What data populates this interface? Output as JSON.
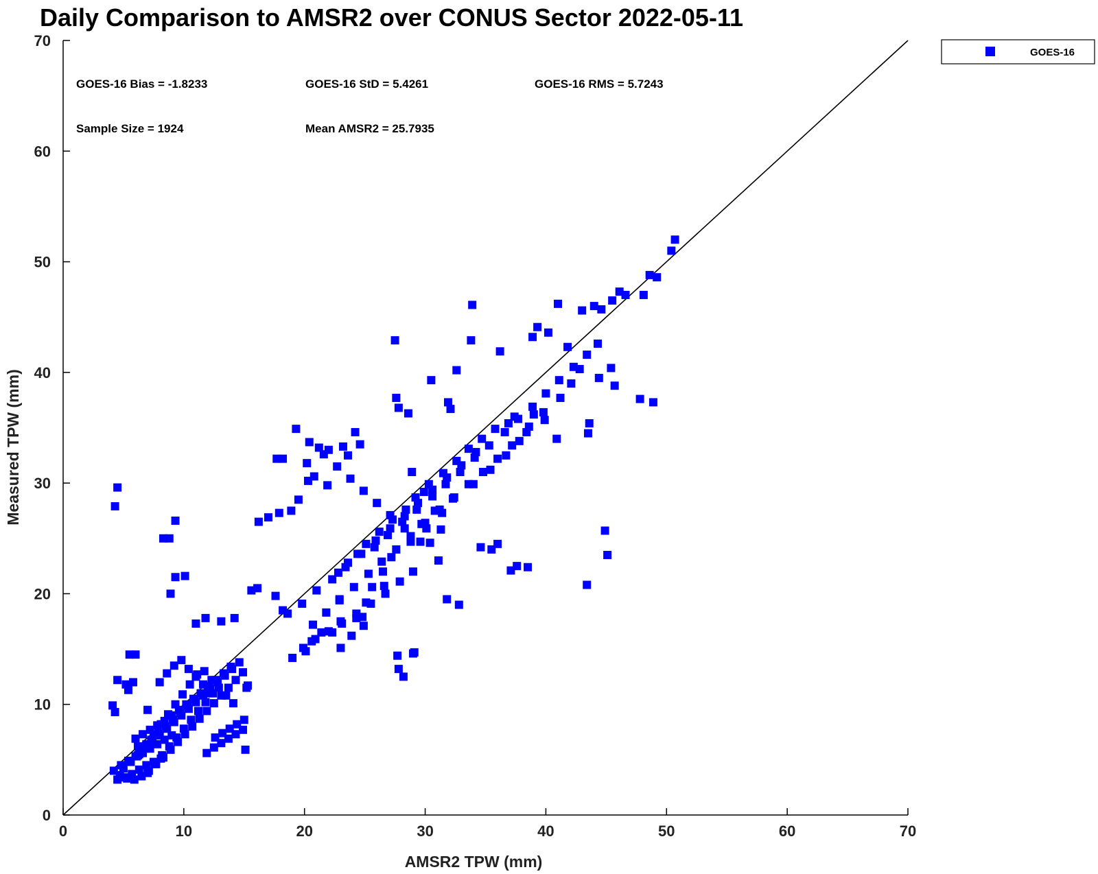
{
  "chart_data": {
    "type": "scatter",
    "title": "Daily Comparison to AMSR2 over CONUS Sector 2022-05-11",
    "xlabel": "AMSR2 TPW (mm)",
    "ylabel": "Measured TPW (mm)",
    "xlim": [
      0,
      70
    ],
    "ylim": [
      0,
      70
    ],
    "xticks": [
      "0",
      "10",
      "20",
      "30",
      "40",
      "50",
      "60",
      "70"
    ],
    "yticks": [
      "0",
      "10",
      "20",
      "30",
      "40",
      "50",
      "60",
      "70"
    ],
    "grid": false,
    "legend_position": "top-right, outside plot",
    "one_to_one_line": true,
    "stats": {
      "bias": "GOES-16 Bias = -1.8233",
      "std": "GOES-16 StD = 5.4261",
      "rms": "GOES-16 RMS = 5.7243",
      "sample_size": "Sample Size = 1924",
      "mean": "Mean AMSR2 = 25.7935"
    },
    "series": [
      {
        "name": "GOES-16",
        "color": "#0000ff",
        "marker": "square",
        "x": [
          4.5,
          4.3,
          9.3,
          8.3,
          8.8,
          9.3,
          10.1,
          8.9,
          5.5,
          6.0,
          4.5,
          5.8,
          5.2,
          5.4,
          4.1,
          4.3,
          6.2,
          7.0,
          11.0,
          11.8,
          13.1,
          14.2,
          15.2,
          15.3,
          15.1,
          16.2,
          17.0,
          17.9,
          15.6,
          16.1,
          17.7,
          18.2,
          18.9,
          19.5,
          20.2,
          21.2,
          22.0,
          20.8,
          21.9,
          20.3,
          23.2,
          23.6,
          24.2,
          24.6,
          27.6,
          27.8,
          28.6,
          17.6,
          18.2,
          19.0,
          20.1,
          20.6,
          21.4,
          22.3,
          23.0,
          23.9,
          24.8,
          25.1,
          25.6,
          26.6,
          27.7,
          29.0,
          27.5,
          30.5,
          31.9,
          32.1,
          32.6,
          33.9,
          33.8,
          36.2,
          38.9,
          39.3,
          40.2,
          41.0,
          41.8,
          43.0,
          44.0,
          44.6,
          45.5,
          46.1,
          46.6,
          48.1,
          48.6,
          49.2,
          50.4,
          50.7,
          47.8,
          48.9,
          45.7,
          45.4,
          44.4,
          43.6,
          43.5,
          40.9,
          39.9,
          39.0,
          44.9,
          45.1,
          43.4,
          38.5,
          37.6,
          37.1,
          36.0,
          35.5,
          34.6,
          32.8,
          31.8,
          29.1,
          28.2,
          27.8,
          24.9,
          24.3,
          23.0,
          22.9,
          26.5,
          27.2,
          28.8,
          30.1,
          31.4,
          32.3,
          34.0,
          35.4,
          36.7,
          37.8,
          38.6,
          39.8,
          41.2,
          42.1,
          42.8,
          37.4,
          36.9,
          35.8,
          34.7,
          33.6,
          32.6,
          31.5,
          30.3,
          29.2,
          28.4,
          27.3,
          26.2,
          25.1,
          24.4,
          23.6,
          22.8,
          25.8,
          26.9,
          28.1,
          29.3,
          30.6,
          31.7,
          32.9,
          34.1,
          35.3,
          36.6,
          37.7,
          38.9,
          40.0,
          41.1,
          42.3,
          43.4,
          44.3,
          28.9,
          29.9,
          30.8,
          31.3,
          29.6,
          28.3,
          27.1,
          26.0,
          24.9,
          23.8,
          22.7,
          21.6,
          20.4,
          19.3,
          18.6,
          19.8,
          21.0,
          22.3,
          23.4,
          24.7,
          25.9,
          27.1,
          28.3,
          29.4,
          30.6,
          31.8,
          33.0,
          34.2,
          29.7,
          30.4,
          31.1,
          29.0,
          27.9,
          26.7,
          25.5,
          24.3,
          23.1,
          22.0,
          20.9,
          19.9,
          20.7,
          21.8,
          22.9,
          24.1,
          25.3,
          26.4,
          27.6,
          28.8,
          30.0,
          31.2,
          32.4,
          33.6,
          34.8,
          36.0,
          37.2,
          38.4,
          5.0,
          5.6,
          6.2,
          6.8,
          7.4,
          8.0,
          8.6,
          9.2,
          9.8,
          10.4,
          11.0,
          11.6,
          12.2,
          12.8,
          13.4,
          14.0,
          14.6,
          6.3,
          6.9,
          7.5,
          8.1,
          8.7,
          9.3,
          9.9,
          10.5,
          11.1,
          11.7,
          12.3,
          12.9,
          13.5,
          14.1,
          7.0,
          7.6,
          8.2,
          8.8,
          9.4,
          10.0,
          10.6,
          11.2,
          11.8,
          12.4,
          8.0,
          8.6,
          9.2,
          9.8,
          10.4,
          11.0,
          11.6,
          12.2,
          4.7,
          5.3,
          5.9,
          6.5,
          7.1,
          7.7,
          8.3,
          8.9,
          9.5,
          10.1,
          10.7,
          11.3,
          11.9,
          12.5,
          13.1,
          13.7,
          14.3,
          14.9,
          5.5,
          6.1,
          6.7,
          7.3,
          7.9,
          8.5,
          9.1,
          9.7,
          10.3,
          10.9,
          11.5,
          12.1,
          12.7,
          13.3,
          13.9,
          6.0,
          6.6,
          7.2,
          7.8,
          8.4,
          9.0,
          9.6,
          10.2,
          10.8,
          11.4,
          12.0,
          4.2,
          4.8,
          5.4,
          6.0,
          6.6,
          7.2,
          7.8,
          8.4,
          9.0,
          4.5,
          5.1,
          5.7,
          6.3,
          6.9,
          7.5,
          8.1,
          12.6,
          13.2,
          13.8,
          14.4,
          15.0,
          11.9,
          12.5,
          13.1,
          13.7,
          14.3,
          14.9
        ],
        "y": [
          29.6,
          27.9,
          26.6,
          25.0,
          25.0,
          21.5,
          21.6,
          20.0,
          14.5,
          14.5,
          12.2,
          12.0,
          11.8,
          11.3,
          9.9,
          9.3,
          6.2,
          9.5,
          17.3,
          17.8,
          17.5,
          17.8,
          11.5,
          11.7,
          5.9,
          26.5,
          26.9,
          27.3,
          20.3,
          20.5,
          32.2,
          32.2,
          27.5,
          28.5,
          31.8,
          33.2,
          33.0,
          30.6,
          29.8,
          30.2,
          33.3,
          32.5,
          34.6,
          33.5,
          37.7,
          36.8,
          36.3,
          19.8,
          18.5,
          14.2,
          14.8,
          15.7,
          16.5,
          16.5,
          15.1,
          16.2,
          17.9,
          19.2,
          20.6,
          20.7,
          14.4,
          14.6,
          42.9,
          39.3,
          37.3,
          36.7,
          40.2,
          46.1,
          42.9,
          41.9,
          43.2,
          44.1,
          43.6,
          46.2,
          42.3,
          45.6,
          46.0,
          45.7,
          46.5,
          47.3,
          47.0,
          47.0,
          48.8,
          48.6,
          51.0,
          52.0,
          37.6,
          37.3,
          38.8,
          40.4,
          39.5,
          35.4,
          34.5,
          34.0,
          35.7,
          36.2,
          25.7,
          23.5,
          20.8,
          22.4,
          22.5,
          22.1,
          24.5,
          24.0,
          24.2,
          19.0,
          19.5,
          14.7,
          12.5,
          13.2,
          17.1,
          17.8,
          17.5,
          19.4,
          22.0,
          23.3,
          24.7,
          25.9,
          27.3,
          28.6,
          29.9,
          31.2,
          32.5,
          33.8,
          35.1,
          36.4,
          37.7,
          39.0,
          40.3,
          36.0,
          35.4,
          34.9,
          34.0,
          33.1,
          32.0,
          30.9,
          29.9,
          28.7,
          27.6,
          26.7,
          25.6,
          24.5,
          23.6,
          22.8,
          21.9,
          24.2,
          25.3,
          26.5,
          27.6,
          28.8,
          29.9,
          31.0,
          32.3,
          33.4,
          34.6,
          35.8,
          36.9,
          38.1,
          39.3,
          40.5,
          41.6,
          42.6,
          31.0,
          29.2,
          27.5,
          25.8,
          24.7,
          25.9,
          27.1,
          28.2,
          29.3,
          30.4,
          31.5,
          32.6,
          33.7,
          34.9,
          18.2,
          19.1,
          20.3,
          21.3,
          22.4,
          23.6,
          24.8,
          25.9,
          27.0,
          28.2,
          29.4,
          30.5,
          31.6,
          32.8,
          26.3,
          24.6,
          23.0,
          22.0,
          21.1,
          20.0,
          19.1,
          18.2,
          17.3,
          16.6,
          15.9,
          15.1,
          17.2,
          18.3,
          19.5,
          20.6,
          21.8,
          22.9,
          24.0,
          25.2,
          26.4,
          27.6,
          28.7,
          29.9,
          31.0,
          32.2,
          33.4,
          34.6,
          4.2,
          4.8,
          5.4,
          6.0,
          6.6,
          7.2,
          7.8,
          8.4,
          9.0,
          9.6,
          10.2,
          10.8,
          11.4,
          12.0,
          12.6,
          13.2,
          13.8,
          5.5,
          6.4,
          7.3,
          8.2,
          9.1,
          10.0,
          10.9,
          11.8,
          12.7,
          13.0,
          12.2,
          11.5,
          10.8,
          10.1,
          3.8,
          4.6,
          5.4,
          6.2,
          7.0,
          7.8,
          8.6,
          9.4,
          10.2,
          11.0,
          12.0,
          12.8,
          13.5,
          14.0,
          13.2,
          12.5,
          11.8,
          11.0,
          3.6,
          3.3,
          3.2,
          3.5,
          4.0,
          4.6,
          5.2,
          5.9,
          6.6,
          7.3,
          8.0,
          8.7,
          9.4,
          10.1,
          10.8,
          11.5,
          12.2,
          12.9,
          4.9,
          5.3,
          6.1,
          6.8,
          7.4,
          8.0,
          8.6,
          9.2,
          9.8,
          10.4,
          11.0,
          11.6,
          12.2,
          12.8,
          13.4,
          6.9,
          7.3,
          7.7,
          8.1,
          8.5,
          9.0,
          9.5,
          10.0,
          10.5,
          11.0,
          11.5,
          4.0,
          4.5,
          4.9,
          5.3,
          5.6,
          6.0,
          6.4,
          6.8,
          7.2,
          3.2,
          3.4,
          3.7,
          4.1,
          4.5,
          4.8,
          5.1,
          7.0,
          7.4,
          7.8,
          8.2,
          8.6,
          5.6,
          6.1,
          6.5,
          6.9,
          7.3,
          7.7
        ]
      }
    ]
  }
}
